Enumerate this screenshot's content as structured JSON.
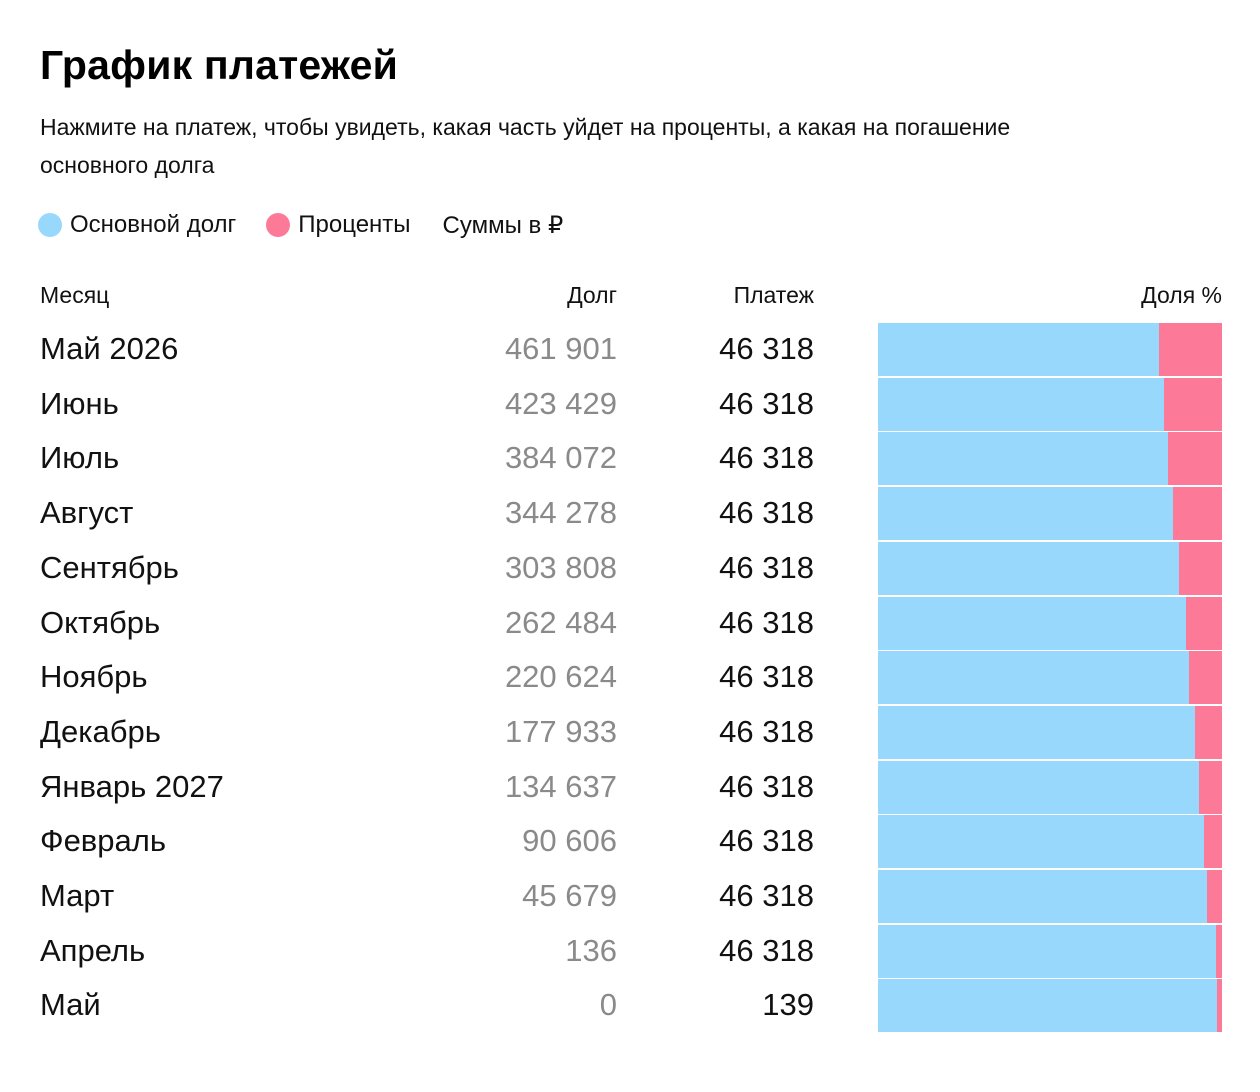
{
  "title": "График платежей",
  "subtitle": "Нажмите на платеж, чтобы увидеть, какая часть уйдет на проценты, а какая на погашение основного долга",
  "legend": {
    "debt_label": "Основной долг",
    "interest_label": "Проценты",
    "currency_note": "Суммы в ₽",
    "debt_color": "#98d8fd",
    "interest_color": "#fc7a97"
  },
  "columns": {
    "month": "Месяц",
    "debt": "Долг",
    "payment": "Платеж",
    "share": "Доля %"
  },
  "chart_data": {
    "type": "bar",
    "orientation": "horizontal-stacked-100%",
    "categories": [
      "Май 2026",
      "Июнь",
      "Июль",
      "Август",
      "Сентябрь",
      "Октябрь",
      "Ноябрь",
      "Декабрь",
      "Январь 2027",
      "Февраль",
      "Март",
      "Апрель",
      "Май"
    ],
    "debt": [
      "461 901",
      "423 429",
      "384 072",
      "344 278",
      "303 808",
      "262 484",
      "220 624",
      "177 933",
      "134 637",
      "90 606",
      "45 679",
      "136",
      "0"
    ],
    "payment": [
      "46 318",
      "46 318",
      "46 318",
      "46 318",
      "46 318",
      "46 318",
      "46 318",
      "46 318",
      "46 318",
      "46 318",
      "46 318",
      "46 318",
      "139"
    ],
    "series": [
      {
        "name": "Основной долг",
        "values": [
          81.7,
          83.1,
          84.3,
          85.9,
          87.5,
          89.4,
          90.5,
          92.1,
          93.3,
          94.9,
          95.6,
          98.2,
          98.5
        ]
      },
      {
        "name": "Проценты",
        "values": [
          18.3,
          16.9,
          15.7,
          14.1,
          12.5,
          10.6,
          9.5,
          7.9,
          6.7,
          5.1,
          4.4,
          1.8,
          1.5
        ]
      }
    ],
    "xlim": [
      0,
      100
    ]
  }
}
